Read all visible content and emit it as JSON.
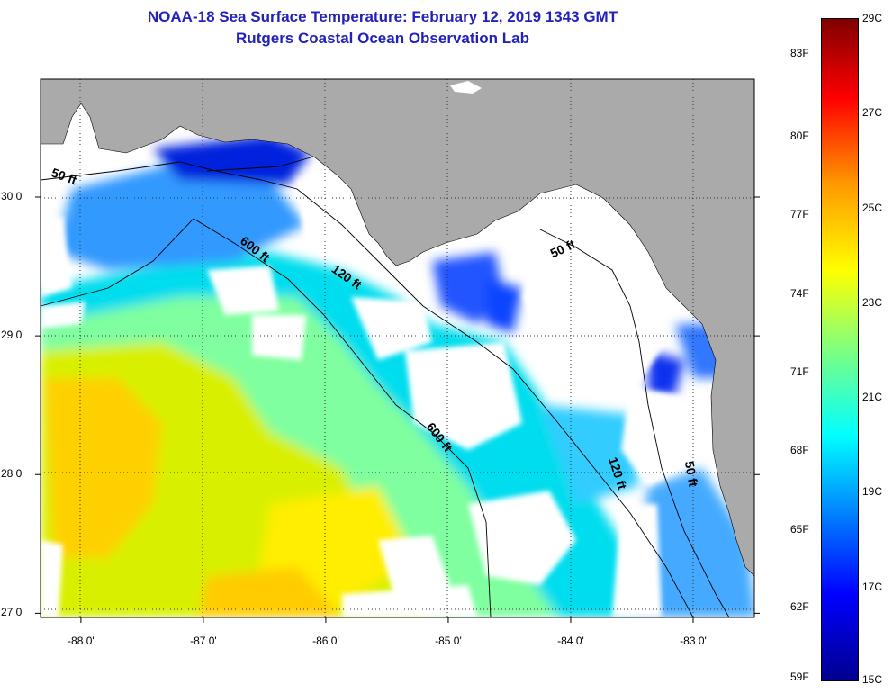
{
  "title": {
    "line1": "NOAA-18 Sea Surface Temperature:  February 12, 2019 1343 GMT",
    "line2": "Rutgers Coastal Ocean Observation Lab"
  },
  "map": {
    "lon_range": [
      -88.33,
      -82.5
    ],
    "lat_range": [
      26.97,
      30.85
    ],
    "lat_ticks": [
      {
        "value": 30,
        "label": "30 0'"
      },
      {
        "value": 29,
        "label": "29 0'"
      },
      {
        "value": 28,
        "label": "28 0'"
      },
      {
        "value": 27,
        "label": "27 0'"
      }
    ],
    "lon_ticks": [
      {
        "value": -88,
        "label": "-88 0'"
      },
      {
        "value": -87,
        "label": "-87 0'"
      },
      {
        "value": -86,
        "label": "-86 0'"
      },
      {
        "value": -85,
        "label": "-85 0'"
      },
      {
        "value": -84,
        "label": "-84 0'"
      },
      {
        "value": -83,
        "label": "-83 0'"
      }
    ],
    "gridlines": "dotted",
    "colors": {
      "land": "#aaaaaa",
      "cloud_nodata": "#ffffff",
      "contour": "#000000"
    },
    "depth_labels": [
      {
        "text": "50 ft",
        "lon": -88.15,
        "lat": 30.12,
        "angle": 20
      },
      {
        "text": "600 ft",
        "lon": -86.6,
        "lat": 29.6,
        "angle": 38
      },
      {
        "text": "120 ft",
        "lon": -85.85,
        "lat": 29.4,
        "angle": 35
      },
      {
        "text": "50 ft",
        "lon": -84.05,
        "lat": 29.6,
        "angle": -25
      },
      {
        "text": "600 ft",
        "lon": -85.1,
        "lat": 28.25,
        "angle": 52
      },
      {
        "text": "120 ft",
        "lon": -83.65,
        "lat": 28.0,
        "angle": 72
      },
      {
        "text": "50 ft",
        "lon": -83.05,
        "lat": 28.0,
        "angle": 80
      }
    ]
  },
  "colorbar": {
    "f_ticks": [
      "83F",
      "80F",
      "77F",
      "74F",
      "71F",
      "68F",
      "65F",
      "62F",
      "59F"
    ],
    "c_ticks": [
      "29C",
      "27C",
      "25C",
      "23C",
      "21C",
      "19C",
      "17C",
      "15C"
    ],
    "range_c": [
      15,
      29
    ]
  }
}
